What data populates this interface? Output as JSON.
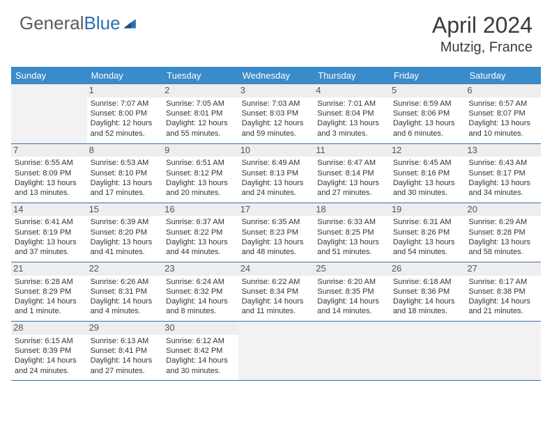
{
  "logo": {
    "word1": "General",
    "word2": "Blue"
  },
  "title": "April 2024",
  "location": "Mutzig, France",
  "colors": {
    "header_bg": "#3a8bc9",
    "header_text": "#ffffff",
    "row_border": "#3a6f9e",
    "daynum_bg": "#eeeeee",
    "empty_bg": "#f2f2f2",
    "logo_accent": "#2a6fb5",
    "text": "#333333"
  },
  "day_headers": [
    "Sunday",
    "Monday",
    "Tuesday",
    "Wednesday",
    "Thursday",
    "Friday",
    "Saturday"
  ],
  "weeks": [
    [
      null,
      {
        "n": "1",
        "sr": "7:07 AM",
        "ss": "8:00 PM",
        "dl": "12 hours and 52 minutes."
      },
      {
        "n": "2",
        "sr": "7:05 AM",
        "ss": "8:01 PM",
        "dl": "12 hours and 55 minutes."
      },
      {
        "n": "3",
        "sr": "7:03 AM",
        "ss": "8:03 PM",
        "dl": "12 hours and 59 minutes."
      },
      {
        "n": "4",
        "sr": "7:01 AM",
        "ss": "8:04 PM",
        "dl": "13 hours and 3 minutes."
      },
      {
        "n": "5",
        "sr": "6:59 AM",
        "ss": "8:06 PM",
        "dl": "13 hours and 6 minutes."
      },
      {
        "n": "6",
        "sr": "6:57 AM",
        "ss": "8:07 PM",
        "dl": "13 hours and 10 minutes."
      }
    ],
    [
      {
        "n": "7",
        "sr": "6:55 AM",
        "ss": "8:09 PM",
        "dl": "13 hours and 13 minutes."
      },
      {
        "n": "8",
        "sr": "6:53 AM",
        "ss": "8:10 PM",
        "dl": "13 hours and 17 minutes."
      },
      {
        "n": "9",
        "sr": "6:51 AM",
        "ss": "8:12 PM",
        "dl": "13 hours and 20 minutes."
      },
      {
        "n": "10",
        "sr": "6:49 AM",
        "ss": "8:13 PM",
        "dl": "13 hours and 24 minutes."
      },
      {
        "n": "11",
        "sr": "6:47 AM",
        "ss": "8:14 PM",
        "dl": "13 hours and 27 minutes."
      },
      {
        "n": "12",
        "sr": "6:45 AM",
        "ss": "8:16 PM",
        "dl": "13 hours and 30 minutes."
      },
      {
        "n": "13",
        "sr": "6:43 AM",
        "ss": "8:17 PM",
        "dl": "13 hours and 34 minutes."
      }
    ],
    [
      {
        "n": "14",
        "sr": "6:41 AM",
        "ss": "8:19 PM",
        "dl": "13 hours and 37 minutes."
      },
      {
        "n": "15",
        "sr": "6:39 AM",
        "ss": "8:20 PM",
        "dl": "13 hours and 41 minutes."
      },
      {
        "n": "16",
        "sr": "6:37 AM",
        "ss": "8:22 PM",
        "dl": "13 hours and 44 minutes."
      },
      {
        "n": "17",
        "sr": "6:35 AM",
        "ss": "8:23 PM",
        "dl": "13 hours and 48 minutes."
      },
      {
        "n": "18",
        "sr": "6:33 AM",
        "ss": "8:25 PM",
        "dl": "13 hours and 51 minutes."
      },
      {
        "n": "19",
        "sr": "6:31 AM",
        "ss": "8:26 PM",
        "dl": "13 hours and 54 minutes."
      },
      {
        "n": "20",
        "sr": "6:29 AM",
        "ss": "8:28 PM",
        "dl": "13 hours and 58 minutes."
      }
    ],
    [
      {
        "n": "21",
        "sr": "6:28 AM",
        "ss": "8:29 PM",
        "dl": "14 hours and 1 minute."
      },
      {
        "n": "22",
        "sr": "6:26 AM",
        "ss": "8:31 PM",
        "dl": "14 hours and 4 minutes."
      },
      {
        "n": "23",
        "sr": "6:24 AM",
        "ss": "8:32 PM",
        "dl": "14 hours and 8 minutes."
      },
      {
        "n": "24",
        "sr": "6:22 AM",
        "ss": "8:34 PM",
        "dl": "14 hours and 11 minutes."
      },
      {
        "n": "25",
        "sr": "6:20 AM",
        "ss": "8:35 PM",
        "dl": "14 hours and 14 minutes."
      },
      {
        "n": "26",
        "sr": "6:18 AM",
        "ss": "8:36 PM",
        "dl": "14 hours and 18 minutes."
      },
      {
        "n": "27",
        "sr": "6:17 AM",
        "ss": "8:38 PM",
        "dl": "14 hours and 21 minutes."
      }
    ],
    [
      {
        "n": "28",
        "sr": "6:15 AM",
        "ss": "8:39 PM",
        "dl": "14 hours and 24 minutes."
      },
      {
        "n": "29",
        "sr": "6:13 AM",
        "ss": "8:41 PM",
        "dl": "14 hours and 27 minutes."
      },
      {
        "n": "30",
        "sr": "6:12 AM",
        "ss": "8:42 PM",
        "dl": "14 hours and 30 minutes."
      },
      null,
      null,
      null,
      null
    ]
  ],
  "labels": {
    "sunrise": "Sunrise:",
    "sunset": "Sunset:",
    "daylight": "Daylight:"
  }
}
